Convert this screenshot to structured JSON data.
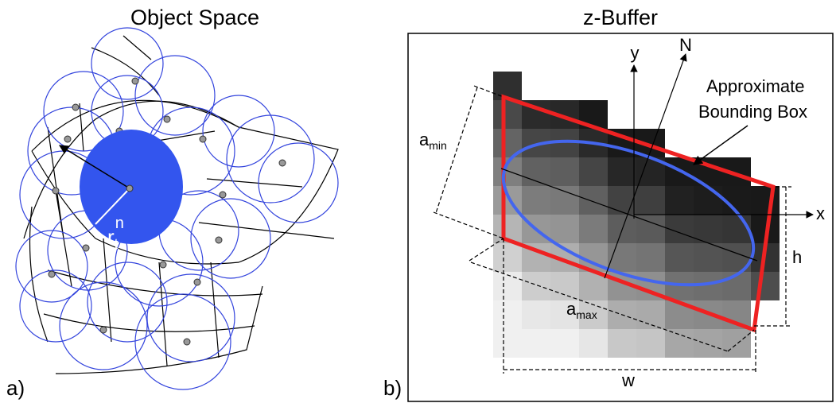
{
  "panels": [
    {
      "label": "a)",
      "title": "Object Space",
      "radius_label": {
        "base": "r",
        "sub": "t",
        "sup": "n"
      }
    },
    {
      "label": "b)",
      "title": "z-Buffer",
      "axes": {
        "y": "y",
        "normal": "N",
        "x": "x"
      },
      "annotation": [
        "Approximate",
        "Bounding Box"
      ],
      "a_min": {
        "base": "a",
        "sub": "min"
      },
      "a_max": {
        "base": "a",
        "sub": "max"
      },
      "height": "h",
      "width": "w"
    }
  ]
}
